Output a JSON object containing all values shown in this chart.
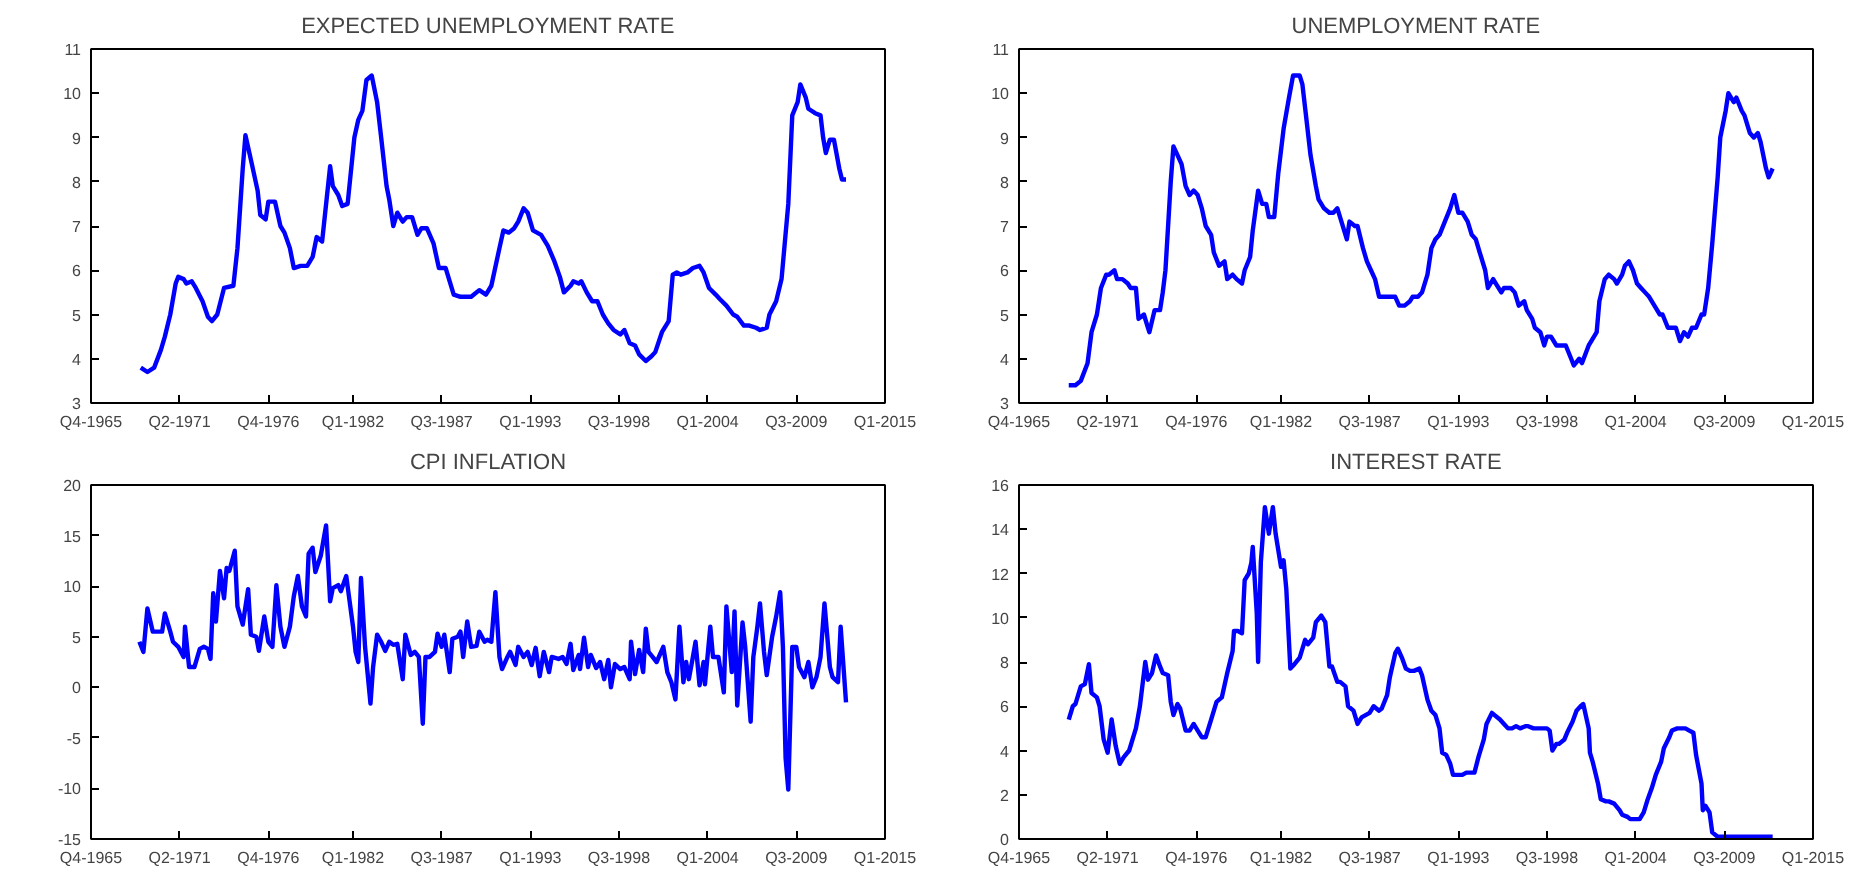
{
  "chart_data": [
    {
      "type": "line",
      "title": "EXPECTED UNEMPLOYMENT RATE",
      "line_style": "solid",
      "xlim": [
        "1965-10",
        "2015-01"
      ],
      "xticks": [
        {
          "value": "1965-10",
          "label": "Q4-1965"
        },
        {
          "value": "1971-04",
          "label": "Q2-1971"
        },
        {
          "value": "1976-10",
          "label": "Q4-1976"
        },
        {
          "value": "1982-01",
          "label": "Q1-1982"
        },
        {
          "value": "1987-07",
          "label": "Q3-1987"
        },
        {
          "value": "1993-01",
          "label": "Q1-1993"
        },
        {
          "value": "1998-07",
          "label": "Q3-1998"
        },
        {
          "value": "2004-01",
          "label": "Q1-2004"
        },
        {
          "value": "2009-07",
          "label": "Q3-2009"
        },
        {
          "value": "2015-01",
          "label": "Q1-2015"
        }
      ],
      "ylim": [
        3,
        11
      ],
      "yticks": [
        3,
        4,
        5,
        6,
        7,
        8,
        9,
        10,
        11
      ],
      "series": [
        {
          "color": "#0000ff",
          "x": [
            "1968-11",
            "1969-04",
            "1969-09",
            "1970-02",
            "1970-05",
            "1970-09",
            "1971-01",
            "1971-03",
            "1971-07",
            "1971-09",
            "1972-01",
            "1972-04",
            "1972-09",
            "1973-01",
            "1973-04",
            "1973-08",
            "1974-01",
            "1974-08",
            "1974-11",
            "1975-03",
            "1975-05",
            "1975-09",
            "1976-02",
            "1976-04",
            "1976-08",
            "1976-10",
            "1977-03",
            "1977-07",
            "1977-10",
            "1978-02",
            "1978-05",
            "1978-10",
            "1979-03",
            "1979-07",
            "1979-10",
            "1980-02",
            "1980-08",
            "1980-10",
            "1981-02",
            "1981-05",
            "1981-09",
            "1982-02",
            "1982-05",
            "1982-08",
            "1982-11",
            "1983-03",
            "1983-07",
            "1983-10",
            "1984-02",
            "1984-04",
            "1984-07",
            "1984-10",
            "1985-02",
            "1985-05",
            "1985-09",
            "1986-01",
            "1986-04",
            "1986-08",
            "1987-01",
            "1987-05",
            "1987-10",
            "1988-04",
            "1988-09",
            "1989-05",
            "1989-11",
            "1990-04",
            "1990-08",
            "1991-02",
            "1991-05",
            "1991-09",
            "1992-01",
            "1992-04",
            "1992-08",
            "1992-11",
            "1993-03",
            "1993-09",
            "1994-02",
            "1994-07",
            "1994-11",
            "1995-02",
            "1995-07",
            "1995-09",
            "1996-01",
            "1996-03",
            "1996-07",
            "1996-11",
            "1997-03",
            "1997-07",
            "1997-11",
            "1998-03",
            "1998-08",
            "1998-11",
            "1999-03",
            "1999-07",
            "1999-10",
            "2000-03",
            "2000-07",
            "2000-10",
            "2001-03",
            "2001-08",
            "2001-11",
            "2002-02",
            "2002-05",
            "2002-10",
            "2003-02",
            "2003-07",
            "2003-10",
            "2004-02",
            "2004-07",
            "2004-10",
            "2005-03",
            "2005-08",
            "2005-11",
            "2006-04",
            "2006-08",
            "2007-01",
            "2007-04",
            "2007-09",
            "2007-11",
            "2008-04",
            "2008-08",
            "2009-01",
            "2009-04",
            "2009-08",
            "2009-10",
            "2010-02",
            "2010-04",
            "2010-09",
            "2011-01",
            "2011-03",
            "2011-05",
            "2011-08",
            "2011-11",
            "2012-03",
            "2012-05",
            "2012-08"
          ],
          "values": [
            3.8,
            3.7,
            3.8,
            4.2,
            4.5,
            5.0,
            5.7,
            5.85,
            5.8,
            5.7,
            5.75,
            5.6,
            5.3,
            4.95,
            4.85,
            5.0,
            5.6,
            5.65,
            6.5,
            8.3,
            9.05,
            8.5,
            7.8,
            7.25,
            7.15,
            7.55,
            7.55,
            7.0,
            6.85,
            6.5,
            6.05,
            6.1,
            6.1,
            6.3,
            6.75,
            6.65,
            8.35,
            7.9,
            7.7,
            7.45,
            7.5,
            9.0,
            9.4,
            9.6,
            10.3,
            10.4,
            9.8,
            9.0,
            7.9,
            7.6,
            7.0,
            7.3,
            7.1,
            7.2,
            7.2,
            6.8,
            6.95,
            6.95,
            6.6,
            6.05,
            6.05,
            5.45,
            5.4,
            5.4,
            5.55,
            5.45,
            5.65,
            6.5,
            6.9,
            6.85,
            6.95,
            7.1,
            7.4,
            7.3,
            6.9,
            6.8,
            6.55,
            6.2,
            5.85,
            5.5,
            5.65,
            5.75,
            5.7,
            5.75,
            5.5,
            5.3,
            5.3,
            5.0,
            4.8,
            4.65,
            4.55,
            4.65,
            4.35,
            4.3,
            4.1,
            3.95,
            4.05,
            4.15,
            4.6,
            4.85,
            5.9,
            5.95,
            5.9,
            5.95,
            6.05,
            6.1,
            5.95,
            5.6,
            5.45,
            5.35,
            5.2,
            5.0,
            4.95,
            4.75,
            4.75,
            4.7,
            4.65,
            4.7,
            5.0,
            5.3,
            5.8,
            7.5,
            9.5,
            9.8,
            10.2,
            9.9,
            9.65,
            9.55,
            9.5,
            9.0,
            8.65,
            8.95,
            8.95,
            8.3,
            8.05,
            8.05
          ]
        }
      ]
    },
    {
      "type": "line",
      "title": "UNEMPLOYMENT RATE",
      "line_style": "solid",
      "xlim": [
        "1965-10",
        "2015-01"
      ],
      "xticks": [
        {
          "value": "1965-10",
          "label": "Q4-1965"
        },
        {
          "value": "1971-04",
          "label": "Q2-1971"
        },
        {
          "value": "1976-10",
          "label": "Q4-1976"
        },
        {
          "value": "1982-01",
          "label": "Q1-1982"
        },
        {
          "value": "1987-07",
          "label": "Q3-1987"
        },
        {
          "value": "1993-01",
          "label": "Q1-1993"
        },
        {
          "value": "1998-07",
          "label": "Q3-1998"
        },
        {
          "value": "2004-01",
          "label": "Q1-2004"
        },
        {
          "value": "2009-07",
          "label": "Q3-2009"
        },
        {
          "value": "2015-01",
          "label": "Q1-2015"
        }
      ],
      "ylim": [
        3,
        11
      ],
      "yticks": [
        3,
        4,
        5,
        6,
        7,
        8,
        9,
        10,
        11
      ],
      "series": [
        {
          "color": "#0000ff",
          "x": [
            "1968-11",
            "1969-04",
            "1969-08",
            "1970-01",
            "1970-04",
            "1970-08",
            "1970-11",
            "1971-03",
            "1971-05",
            "1971-09",
            "1971-11",
            "1972-03",
            "1972-07",
            "1972-09",
            "1973-01",
            "1973-03",
            "1973-07",
            "1973-10",
            "1973-11",
            "1974-03",
            "1974-07",
            "1974-09",
            "1974-11",
            "1975-03",
            "1975-05",
            "1975-08",
            "1975-11",
            "1976-02",
            "1976-05",
            "1976-08",
            "1976-11",
            "1977-02",
            "1977-05",
            "1977-09",
            "1977-11",
            "1978-03",
            "1978-07",
            "1978-09",
            "1979-01",
            "1979-04",
            "1979-08",
            "1979-10",
            "1980-02",
            "1980-04",
            "1980-08",
            "1980-11",
            "1981-02",
            "1981-04",
            "1981-08",
            "1981-11",
            "1982-03",
            "1982-07",
            "1982-10",
            "1983-03",
            "1983-05",
            "1983-08",
            "1983-11",
            "1984-03",
            "1984-05",
            "1984-09",
            "1985-01",
            "1985-04",
            "1985-07",
            "1985-10",
            "1986-02",
            "1986-04",
            "1986-08",
            "1986-10",
            "1987-02",
            "1987-05",
            "1987-08",
            "1987-11",
            "1988-02",
            "1988-05",
            "1988-09",
            "1989-02",
            "1989-05",
            "1989-09",
            "1990-01",
            "1990-03",
            "1990-07",
            "1990-10",
            "1991-02",
            "1991-05",
            "1991-08",
            "1991-11",
            "1992-03",
            "1992-07",
            "1992-09",
            "1992-10",
            "1993-01",
            "1993-04",
            "1993-08",
            "1993-11",
            "1994-02",
            "1994-05",
            "1994-09",
            "1994-11",
            "1995-03",
            "1995-05",
            "1995-09",
            "1995-11",
            "1996-04",
            "1996-07",
            "1996-10",
            "1997-02",
            "1997-04",
            "1997-08",
            "1997-10",
            "1998-02",
            "1998-05",
            "1998-07",
            "1998-10",
            "1999-02",
            "1999-05",
            "1999-09",
            "2000-01",
            "2000-03",
            "2000-07",
            "2000-09",
            "2001-02",
            "2001-04",
            "2001-08",
            "2001-10",
            "2002-02",
            "2002-05",
            "2002-09",
            "2002-11",
            "2003-03",
            "2003-05",
            "2003-08",
            "2003-11",
            "2004-02",
            "2004-05",
            "2004-08",
            "2004-11",
            "2005-03",
            "2005-07",
            "2005-09",
            "2006-01",
            "2006-03",
            "2006-07",
            "2006-10",
            "2007-01",
            "2007-04",
            "2007-07",
            "2007-10",
            "2008-02",
            "2008-04",
            "2008-07",
            "2008-10",
            "2009-02",
            "2009-04",
            "2009-08",
            "2009-10",
            "2010-02",
            "2010-04",
            "2010-08",
            "2010-10",
            "2011-02",
            "2011-05",
            "2011-08",
            "2011-10",
            "2012-02",
            "2012-04",
            "2012-07"
          ],
          "values": [
            3.4,
            3.4,
            3.5,
            3.9,
            4.6,
            5.0,
            5.6,
            5.9,
            5.9,
            6.0,
            5.8,
            5.8,
            5.7,
            5.6,
            5.6,
            4.9,
            5.0,
            4.7,
            4.6,
            5.1,
            5.1,
            5.5,
            6.0,
            8.0,
            8.8,
            8.6,
            8.4,
            7.9,
            7.7,
            7.8,
            7.7,
            7.4,
            7.0,
            6.8,
            6.4,
            6.1,
            6.2,
            5.8,
            5.9,
            5.8,
            5.7,
            6.0,
            6.3,
            6.9,
            7.8,
            7.5,
            7.5,
            7.2,
            7.2,
            8.2,
            9.2,
            9.9,
            10.4,
            10.4,
            10.2,
            9.4,
            8.6,
            7.9,
            7.6,
            7.4,
            7.3,
            7.3,
            7.4,
            7.1,
            6.7,
            7.1,
            7.0,
            7.0,
            6.5,
            6.2,
            6.0,
            5.8,
            5.4,
            5.4,
            5.4,
            5.4,
            5.2,
            5.2,
            5.3,
            5.4,
            5.4,
            5.5,
            5.9,
            6.5,
            6.7,
            6.8,
            7.1,
            7.4,
            7.6,
            7.7,
            7.3,
            7.3,
            7.1,
            6.8,
            6.7,
            6.4,
            6.0,
            5.6,
            5.8,
            5.7,
            5.5,
            5.6,
            5.6,
            5.5,
            5.2,
            5.3,
            5.1,
            4.9,
            4.7,
            4.6,
            4.3,
            4.5,
            4.5,
            4.3,
            4.3,
            4.3,
            4.0,
            3.85,
            4.0,
            3.9,
            4.3,
            4.4,
            4.6,
            5.3,
            5.8,
            5.9,
            5.8,
            5.7,
            5.9,
            6.1,
            6.2,
            6.0,
            5.7,
            5.6,
            5.5,
            5.4,
            5.2,
            5.0,
            5.0,
            4.7,
            4.7,
            4.7,
            4.4,
            4.6,
            4.5,
            4.7,
            4.7,
            5.0,
            5.0,
            5.6,
            6.6,
            8.1,
            9.0,
            9.6,
            10.0,
            9.8,
            9.9,
            9.6,
            9.5,
            9.1,
            9.0,
            9.1,
            8.9,
            8.3,
            8.1,
            8.3
          ]
        }
      ]
    },
    {
      "type": "line",
      "title": "CPI INFLATION",
      "line_style": "solid",
      "xlim": [
        "1965-10",
        "2015-01"
      ],
      "xticks": [
        {
          "value": "1965-10",
          "label": "Q4-1965"
        },
        {
          "value": "1971-04",
          "label": "Q2-1971"
        },
        {
          "value": "1976-10",
          "label": "Q4-1976"
        },
        {
          "value": "1982-01",
          "label": "Q1-1982"
        },
        {
          "value": "1987-07",
          "label": "Q3-1987"
        },
        {
          "value": "1993-01",
          "label": "Q1-1993"
        },
        {
          "value": "1998-07",
          "label": "Q3-1998"
        },
        {
          "value": "2004-01",
          "label": "Q1-2004"
        },
        {
          "value": "2009-07",
          "label": "Q3-2009"
        },
        {
          "value": "2015-01",
          "label": "Q1-2015"
        }
      ],
      "ylim": [
        -15,
        20
      ],
      "yticks": [
        -15,
        -10,
        -5,
        0,
        5,
        10,
        15,
        20
      ],
      "series": [
        {
          "color": "#0000ff",
          "x": [
            "1968-10",
            "1969-01",
            "1969-04",
            "1969-08",
            "1969-11",
            "1970-03",
            "1970-05",
            "1970-09",
            "1970-11",
            "1971-03",
            "1971-05",
            "1971-07",
            "1971-08",
            "1971-11",
            "1972-03",
            "1972-07",
            "1972-10",
            "1973-01",
            "1973-03",
            "1973-05",
            "1973-07",
            "1973-10",
            "1974-01",
            "1974-03",
            "1974-05",
            "1974-09",
            "1974-11",
            "1975-03",
            "1975-07",
            "1975-09",
            "1976-01",
            "1976-03",
            "1976-07",
            "1976-10",
            "1977-01",
            "1977-04",
            "1977-07",
            "1977-10",
            "1978-02",
            "1978-05",
            "1978-08",
            "1978-11",
            "1979-02",
            "1979-04",
            "1979-07",
            "1979-09",
            "1980-01",
            "1980-03",
            "1980-05",
            "1980-08",
            "1980-10",
            "1981-02",
            "1981-04",
            "1981-08",
            "1981-10",
            "1982-01",
            "1982-03",
            "1982-05",
            "1982-07",
            "1982-10",
            "1983-02",
            "1983-04",
            "1983-07",
            "1983-10",
            "1984-01",
            "1984-04",
            "1984-07",
            "1984-10",
            "1985-02",
            "1985-04",
            "1985-08",
            "1985-11",
            "1986-02",
            "1986-05",
            "1986-07",
            "1986-10",
            "1987-02",
            "1987-04",
            "1987-07",
            "1987-09",
            "1988-01",
            "1988-03",
            "1988-07",
            "1988-09",
            "1988-11",
            "1989-02",
            "1989-05",
            "1989-09",
            "1989-11",
            "1990-03",
            "1990-05",
            "1990-08",
            "1990-11",
            "1991-02",
            "1991-04",
            "1991-08",
            "1991-10",
            "1992-02",
            "1992-04",
            "1992-08",
            "1992-11",
            "1993-02",
            "1993-05",
            "1993-08",
            "1993-11",
            "1994-03",
            "1994-05",
            "1994-10",
            "1995-01",
            "1995-04",
            "1995-07",
            "1995-09",
            "1996-01",
            "1996-02",
            "1996-05",
            "1996-08",
            "1996-10",
            "1997-02",
            "1997-05",
            "1997-08",
            "1997-11",
            "1998-01",
            "1998-04",
            "1998-08",
            "1998-11",
            "1999-03",
            "1999-04",
            "1999-07",
            "1999-10",
            "2000-01",
            "2000-03",
            "2000-05",
            "2000-08",
            "2000-11",
            "2001-04",
            "2001-07",
            "2001-10",
            "2002-01",
            "2002-04",
            "2002-07",
            "2002-09",
            "2002-11",
            "2003-02",
            "2003-04",
            "2003-07",
            "2003-10",
            "2003-11",
            "2004-03",
            "2004-05",
            "2004-09",
            "2005-01",
            "2005-03",
            "2005-07",
            "2005-09",
            "2005-11",
            "2006-03",
            "2006-05",
            "2006-09",
            "2006-11",
            "2007-02",
            "2007-04",
            "2007-07",
            "2007-09",
            "2008-01",
            "2008-04",
            "2008-07",
            "2008-09",
            "2008-11",
            "2009-01",
            "2009-04",
            "2009-07",
            "2009-09",
            "2010-01",
            "2010-04",
            "2010-07",
            "2010-10",
            "2011-01",
            "2011-04",
            "2011-08",
            "2011-10",
            "2012-02",
            "2012-04",
            "2012-08"
          ],
          "values": [
            4.5,
            3.5,
            7.8,
            5.5,
            5.5,
            5.5,
            7.3,
            5.5,
            4.5,
            4.0,
            3.5,
            3.0,
            6.0,
            2.0,
            2.0,
            3.8,
            4.0,
            3.8,
            2.8,
            9.3,
            6.5,
            11.5,
            8.8,
            11.8,
            11.5,
            13.5,
            8.0,
            6.2,
            9.7,
            5.2,
            5.0,
            3.6,
            7.0,
            4.5,
            4.0,
            10.1,
            6.0,
            4.0,
            6.0,
            9.0,
            11.0,
            8.0,
            7.0,
            13.2,
            13.8,
            11.4,
            13.0,
            14.5,
            16.0,
            8.5,
            9.8,
            10.1,
            9.5,
            11.0,
            9.0,
            6.0,
            3.5,
            2.5,
            10.8,
            4.0,
            -1.6,
            2.0,
            5.2,
            4.5,
            3.6,
            4.5,
            4.2,
            4.3,
            0.8,
            5.2,
            3.2,
            3.5,
            3.0,
            -3.6,
            3.0,
            3.0,
            3.5,
            5.3,
            4.0,
            5.2,
            1.5,
            4.8,
            5.0,
            5.5,
            3.0,
            6.5,
            4.0,
            4.1,
            5.5,
            4.5,
            4.7,
            4.5,
            9.4,
            3.0,
            1.8,
            3.0,
            3.5,
            2.2,
            4.0,
            3.0,
            3.5,
            2.2,
            3.9,
            1.1,
            3.5,
            1.5,
            3.0,
            2.8,
            3.0,
            2.3,
            4.3,
            1.7,
            3.2,
            1.8,
            4.9,
            2.0,
            3.2,
            1.9,
            2.5,
            0.8,
            2.7,
            0.0,
            2.3,
            1.8,
            2.0,
            0.8,
            4.5,
            1.3,
            3.7,
            1.5,
            5.8,
            3.5,
            3.0,
            2.5,
            4.0,
            1.5,
            0.5,
            -1.2,
            6.0,
            0.5,
            2.5,
            0.8,
            3.0,
            4.5,
            0.2,
            2.5,
            0.3,
            6.0,
            3.0,
            3.0,
            -0.5,
            8.0,
            1.5,
            7.5,
            -1.8,
            6.4,
            4.0,
            -3.4,
            3.0,
            6.0,
            8.3,
            3.5,
            1.2,
            5.0,
            7.0,
            9.4,
            4.0,
            -7.0,
            -10.1,
            4.0,
            4.0,
            2.0,
            1.0,
            2.5,
            0.0,
            1.0,
            3.0,
            8.3,
            2.0,
            1.0,
            0.5,
            6.0,
            -1.5
          ]
        }
      ]
    },
    {
      "type": "line",
      "title": "INTEREST RATE",
      "line_style": "solid",
      "xlim": [
        "1965-10",
        "2015-01"
      ],
      "xticks": [
        {
          "value": "1965-10",
          "label": "Q4-1965"
        },
        {
          "value": "1971-04",
          "label": "Q2-1971"
        },
        {
          "value": "1976-10",
          "label": "Q4-1976"
        },
        {
          "value": "1982-01",
          "label": "Q1-1982"
        },
        {
          "value": "1987-07",
          "label": "Q3-1987"
        },
        {
          "value": "1993-01",
          "label": "Q1-1993"
        },
        {
          "value": "1998-07",
          "label": "Q3-1998"
        },
        {
          "value": "2004-01",
          "label": "Q1-2004"
        },
        {
          "value": "2009-07",
          "label": "Q3-2009"
        },
        {
          "value": "2015-01",
          "label": "Q1-2015"
        }
      ],
      "ylim": [
        0,
        16
      ],
      "yticks": [
        0,
        2,
        4,
        6,
        8,
        10,
        12,
        14,
        16
      ],
      "series": [
        {
          "color": "#0000ff",
          "x": [
            "1968-11",
            "1969-02",
            "1969-04",
            "1969-08",
            "1969-11",
            "1970-02",
            "1970-04",
            "1970-08",
            "1970-10",
            "1971-01",
            "1971-04",
            "1971-07",
            "1971-10",
            "1972-01",
            "1972-04",
            "1972-08",
            "1973-01",
            "1973-04",
            "1973-08",
            "1973-10",
            "1974-01",
            "1974-04",
            "1974-07",
            "1974-09",
            "1975-01",
            "1975-03",
            "1975-05",
            "1975-08",
            "1975-10",
            "1976-02",
            "1976-05",
            "1976-08",
            "1976-11",
            "1977-02",
            "1977-05",
            "1977-09",
            "1978-01",
            "1978-03",
            "1978-05",
            "1978-09",
            "1979-01",
            "1979-02",
            "1979-05",
            "1979-08",
            "1979-10",
            "1980-01",
            "1980-03",
            "1980-04",
            "1980-07",
            "1980-08",
            "1980-10",
            "1981-01",
            "1981-04",
            "1981-07",
            "1981-09",
            "1982-01",
            "1982-03",
            "1982-05",
            "1982-08",
            "1982-11",
            "1983-03",
            "1983-07",
            "1983-09",
            "1984-01",
            "1984-03",
            "1984-07",
            "1984-10",
            "1985-01",
            "1985-03",
            "1985-07",
            "1985-09",
            "1986-01",
            "1986-03",
            "1986-07",
            "1986-10",
            "1987-01",
            "1987-04",
            "1987-07",
            "1987-10",
            "1988-02",
            "1988-04",
            "1988-08",
            "1988-10",
            "1989-02",
            "1989-04",
            "1989-07",
            "1989-10",
            "1990-01",
            "1990-04",
            "1990-08",
            "1990-10",
            "1991-02",
            "1991-05",
            "1991-08",
            "1991-11",
            "1992-01",
            "1992-04",
            "1992-07",
            "1992-09",
            "1993-01",
            "1993-04",
            "1993-07",
            "1993-10",
            "1994-01",
            "1994-04",
            "1994-08",
            "1994-10",
            "1995-02",
            "1995-04",
            "1995-08",
            "1995-11",
            "1996-02",
            "1996-05",
            "1996-08",
            "1996-11",
            "1997-03",
            "1997-05",
            "1997-09",
            "1997-11",
            "1998-03",
            "1998-07",
            "1998-09",
            "1998-11",
            "1999-02",
            "1999-04",
            "1999-08",
            "1999-10",
            "2000-02",
            "2000-05",
            "2000-08",
            "2000-10",
            "2001-02",
            "2001-03",
            "2001-05",
            "2001-09",
            "2001-11",
            "2002-03",
            "2002-05",
            "2002-09",
            "2003-01",
            "2003-03",
            "2003-07",
            "2003-09",
            "2004-01",
            "2004-04",
            "2004-07",
            "2004-10",
            "2005-01",
            "2005-04",
            "2005-08",
            "2005-10",
            "2006-02",
            "2006-04",
            "2006-08",
            "2006-11",
            "2007-02",
            "2007-05",
            "2007-08",
            "2007-10",
            "2008-02",
            "2008-03",
            "2008-05",
            "2008-08",
            "2008-10",
            "2009-02",
            "2009-05",
            "2009-10",
            "2010-03",
            "2010-09",
            "2011-02",
            "2011-07",
            "2012-01",
            "2012-07"
          ],
          "values": [
            5.4,
            6.0,
            6.1,
            6.9,
            7.0,
            7.9,
            6.6,
            6.4,
            6.0,
            4.5,
            3.9,
            5.4,
            4.2,
            3.4,
            3.7,
            4.0,
            5.0,
            6.0,
            8.0,
            7.2,
            7.5,
            8.3,
            7.8,
            7.5,
            7.4,
            6.2,
            5.6,
            6.1,
            5.9,
            4.9,
            4.9,
            5.2,
            4.9,
            4.6,
            4.6,
            5.4,
            6.2,
            6.3,
            6.4,
            7.5,
            8.5,
            9.4,
            9.4,
            9.3,
            11.7,
            12.0,
            12.5,
            13.2,
            10.2,
            8.0,
            12.5,
            15.0,
            13.8,
            15.0,
            13.8,
            12.3,
            12.6,
            11.3,
            7.7,
            7.9,
            8.2,
            9.0,
            8.8,
            9.1,
            9.8,
            10.1,
            9.8,
            7.8,
            7.8,
            7.1,
            7.1,
            6.9,
            6.0,
            5.8,
            5.2,
            5.5,
            5.6,
            5.7,
            6.0,
            5.8,
            5.9,
            6.5,
            7.3,
            8.4,
            8.6,
            8.2,
            7.7,
            7.6,
            7.6,
            7.7,
            7.4,
            6.3,
            5.8,
            5.6,
            5.0,
            3.9,
            3.8,
            3.4,
            2.9,
            2.9,
            2.9,
            3.0,
            3.0,
            3.0,
            3.7,
            4.5,
            5.2,
            5.7,
            5.6,
            5.4,
            5.2,
            5.0,
            5.0,
            5.1,
            5.0,
            5.1,
            5.1,
            5.0,
            5.0,
            5.0,
            5.0,
            4.9,
            4.0,
            4.3,
            4.3,
            4.5,
            4.8,
            5.3,
            5.8,
            6.0,
            6.1,
            5.0,
            3.9,
            3.5,
            2.5,
            1.8,
            1.7,
            1.7,
            1.6,
            1.3,
            1.1,
            1.0,
            0.9,
            0.9,
            0.9,
            1.2,
            1.8,
            2.3,
            2.9,
            3.5,
            4.1,
            4.6,
            4.9,
            5.0,
            5.0,
            5.0,
            4.9,
            4.8,
            3.8,
            2.5,
            1.3,
            1.5,
            1.2,
            0.3,
            0.1,
            0.1,
            0.1,
            0.1,
            0.1,
            0.1,
            0.1,
            0.1,
            0.1
          ]
        }
      ]
    }
  ]
}
